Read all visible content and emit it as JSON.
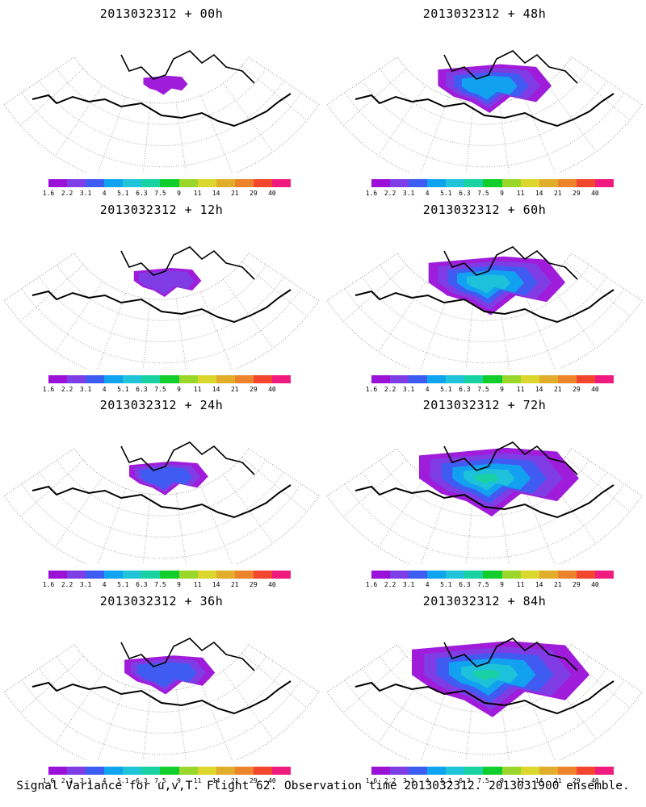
{
  "panels": [
    {
      "title": "2013032312 + 00h",
      "level": 0
    },
    {
      "title": "2013032312 + 48h",
      "level": 3
    },
    {
      "title": "2013032312 + 12h",
      "level": 1
    },
    {
      "title": "2013032312 + 60h",
      "level": 4
    },
    {
      "title": "2013032312 + 24h",
      "level": 1.5
    },
    {
      "title": "2013032312 + 72h",
      "level": 5
    },
    {
      "title": "2013032312 + 36h",
      "level": 2
    },
    {
      "title": "2013032312 + 84h",
      "level": 6
    }
  ],
  "colorbar": {
    "colors": [
      "#9a11d8",
      "#7d3ee6",
      "#3d5df2",
      "#10a4f0",
      "#1fc4d8",
      "#19d2a2",
      "#12ce2d",
      "#9bd72a",
      "#dcd72c",
      "#e2ad2a",
      "#ed832a",
      "#f2462f",
      "#f01b7e"
    ],
    "labels": [
      "1.6",
      "2.2",
      "3.1",
      "4",
      "5.1",
      "6.3",
      "7.5",
      "9",
      "11",
      "14",
      "21",
      "29",
      "40"
    ]
  },
  "caption": "Signal Variance for u,v,T. Flight 62. Observation time 2013032312. 2013031900 ensemble."
}
